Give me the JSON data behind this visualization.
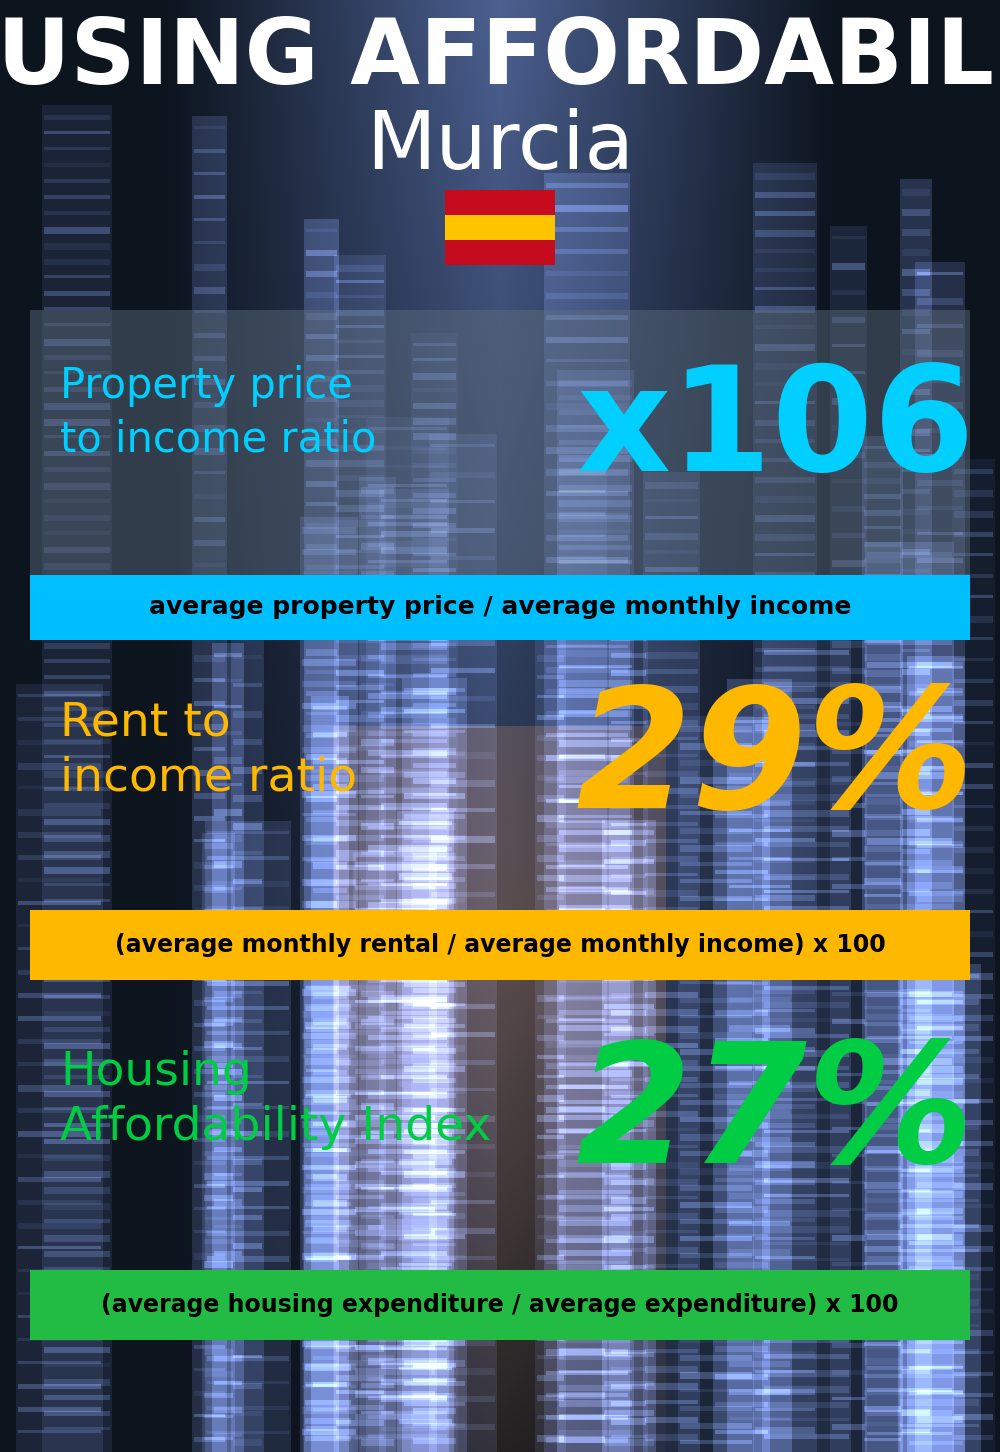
{
  "title_line1": "HOUSING AFFORDABILITY",
  "title_line2": "Murcia",
  "section1_label": "Property price\nto income ratio",
  "section1_value": "x106",
  "section1_value_color": "#00CFFF",
  "section1_label_color": "#00CFFF",
  "section1_banner_text": "average property price / average monthly income",
  "section1_banner_bg": "#00BFFF",
  "section2_label": "Rent to\nincome ratio",
  "section2_value": "29%",
  "section2_value_color": "#FFB800",
  "section2_label_color": "#FFB800",
  "section2_banner_text": "(average monthly rental / average monthly income) x 100",
  "section2_banner_bg": "#FFB800",
  "section3_label": "Housing\nAffordability Index",
  "section3_value": "27%",
  "section3_value_color": "#00CC44",
  "section3_label_color": "#00CC44",
  "section3_banner_text": "(average housing expenditure / average expenditure) x 100",
  "section3_banner_bg": "#22BB44",
  "bg_color": "#0a0f1a",
  "title_color": "#FFFFFF",
  "banner_text_color": "#000000",
  "gray_panel_color": "#607080",
  "gray_panel_alpha": 0.45
}
